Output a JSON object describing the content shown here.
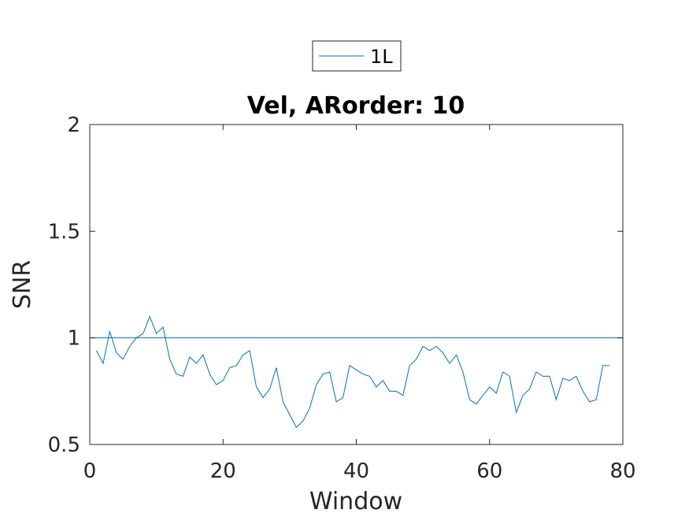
{
  "chart_data": {
    "type": "line",
    "title": "Vel, ARorder: 10",
    "xlabel": "Window",
    "ylabel": "SNR",
    "xlim": [
      0,
      80
    ],
    "ylim": [
      0.5,
      2
    ],
    "xticks": [
      0,
      20,
      40,
      60,
      80
    ],
    "yticks": [
      0.5,
      1,
      1.5,
      2
    ],
    "xtick_labels": [
      "0",
      "20",
      "40",
      "60",
      "80"
    ],
    "ytick_labels": [
      "0.5",
      "1",
      "1.5",
      "2"
    ],
    "grid": false,
    "legend": {
      "placement": "top-center-outside",
      "entries": [
        "1L"
      ]
    },
    "colors": {
      "series": "#0072BD",
      "axes": "#262626"
    },
    "reference_lines": [
      {
        "y": 1,
        "style": "solid"
      },
      {
        "y": 2,
        "style": "dashed"
      },
      {
        "y": 0.5,
        "style": "dashed"
      }
    ],
    "series": [
      {
        "name": "1L",
        "x": [
          1,
          2,
          3,
          4,
          5,
          6,
          7,
          8,
          9,
          10,
          11,
          12,
          13,
          14,
          15,
          16,
          17,
          18,
          19,
          20,
          21,
          22,
          23,
          24,
          25,
          26,
          27,
          28,
          29,
          30,
          31,
          32,
          33,
          34,
          35,
          36,
          37,
          38,
          39,
          40,
          41,
          42,
          43,
          44,
          45,
          46,
          47,
          48,
          49,
          50,
          51,
          52,
          53,
          54,
          55,
          56,
          57,
          58,
          59,
          60,
          61,
          62,
          63,
          64,
          65,
          66,
          67,
          68,
          69,
          70,
          71,
          72,
          73,
          74,
          75,
          76,
          77,
          78
        ],
        "y": [
          0.94,
          0.88,
          1.03,
          0.93,
          0.9,
          0.96,
          1.0,
          1.02,
          1.1,
          1.02,
          1.05,
          0.9,
          0.83,
          0.82,
          0.91,
          0.88,
          0.92,
          0.83,
          0.78,
          0.8,
          0.86,
          0.87,
          0.92,
          0.94,
          0.77,
          0.72,
          0.76,
          0.86,
          0.7,
          0.64,
          0.58,
          0.61,
          0.67,
          0.78,
          0.83,
          0.84,
          0.7,
          0.72,
          0.87,
          0.85,
          0.83,
          0.82,
          0.77,
          0.8,
          0.75,
          0.75,
          0.73,
          0.87,
          0.9,
          0.96,
          0.94,
          0.96,
          0.93,
          0.88,
          0.92,
          0.84,
          0.71,
          0.69,
          0.73,
          0.77,
          0.74,
          0.84,
          0.82,
          0.65,
          0.73,
          0.76,
          0.84,
          0.82,
          0.82,
          0.71,
          0.81,
          0.8,
          0.82,
          0.75,
          0.7,
          0.71,
          0.87,
          0.87
        ]
      }
    ]
  }
}
